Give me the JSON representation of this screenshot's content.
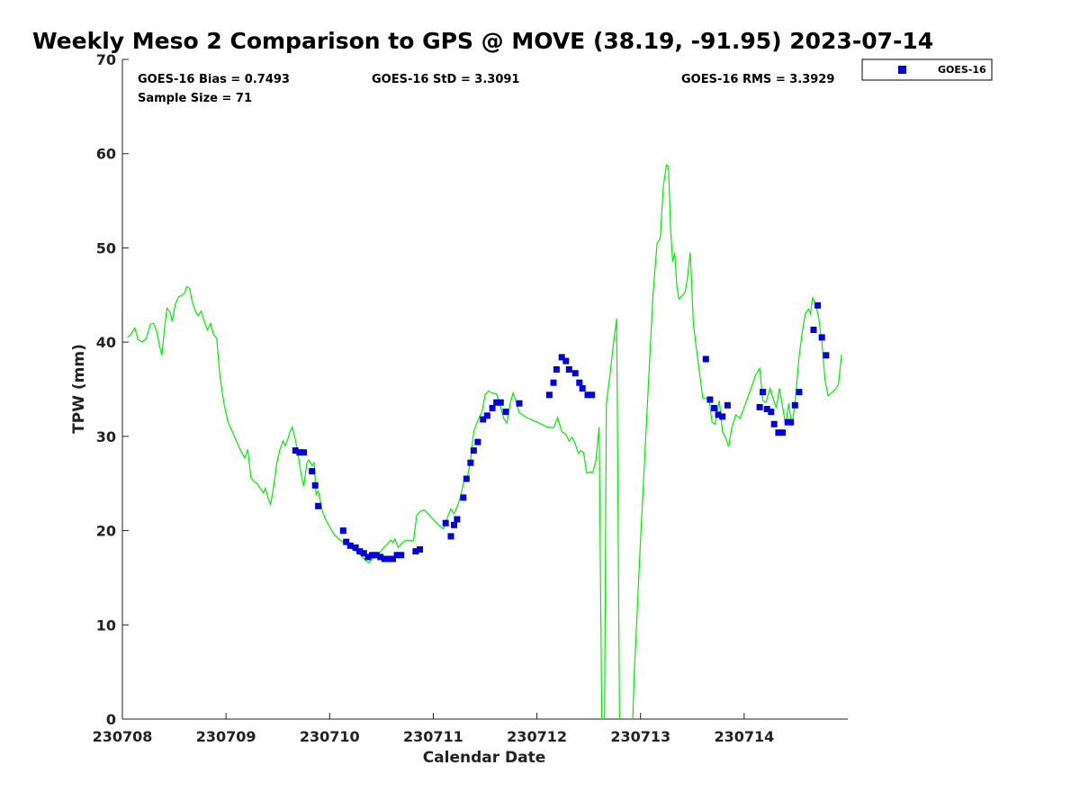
{
  "chart_data": {
    "type": "scatter",
    "title": "Weekly Meso 2 Comparison to GPS @ MOVE (38.19, -91.95) 2023-07-14",
    "xlabel": "Calendar Date",
    "ylabel": "TPW (mm)",
    "xlim": [
      "230708",
      "230715"
    ],
    "ylim": [
      0,
      70
    ],
    "x_ticks": [
      "230708",
      "230709",
      "230710",
      "230711",
      "230712",
      "230713",
      "230714"
    ],
    "y_ticks": [
      "0",
      "10",
      "20",
      "30",
      "40",
      "50",
      "60",
      "70"
    ],
    "grid": false,
    "legend_position": "top-right, outside plot",
    "stats": {
      "bias": "GOES-16 Bias = 0.7493",
      "std": "GOES-16 StD = 3.3091",
      "rms": "GOES-16 RMS = 3.3929",
      "sample_size": "Sample Size = 71"
    },
    "colors": {
      "goes": "#0000dd",
      "gps": "#00ee00"
    },
    "series": [
      {
        "name": "GOES-16",
        "marker": "square",
        "points": [
          [
            1.67,
            28.5
          ],
          [
            1.71,
            28.3
          ],
          [
            1.75,
            28.3
          ],
          [
            1.83,
            26.3
          ],
          [
            1.86,
            24.8
          ],
          [
            1.89,
            22.6
          ],
          [
            2.13,
            20.0
          ],
          [
            2.16,
            18.8
          ],
          [
            2.2,
            18.4
          ],
          [
            2.25,
            18.2
          ],
          [
            2.29,
            17.8
          ],
          [
            2.33,
            17.6
          ],
          [
            2.37,
            17.2
          ],
          [
            2.41,
            17.4
          ],
          [
            2.45,
            17.4
          ],
          [
            2.49,
            17.2
          ],
          [
            2.53,
            17.0
          ],
          [
            2.57,
            17.0
          ],
          [
            2.61,
            17.0
          ],
          [
            2.65,
            17.4
          ],
          [
            2.69,
            17.4
          ],
          [
            2.83,
            17.8
          ],
          [
            2.87,
            18.0
          ],
          [
            3.12,
            20.8
          ],
          [
            3.17,
            19.4
          ],
          [
            3.2,
            20.6
          ],
          [
            3.23,
            21.2
          ],
          [
            3.29,
            23.5
          ],
          [
            3.32,
            25.5
          ],
          [
            3.36,
            27.2
          ],
          [
            3.39,
            28.5
          ],
          [
            3.43,
            29.4
          ],
          [
            3.48,
            31.8
          ],
          [
            3.52,
            32.2
          ],
          [
            3.57,
            33.0
          ],
          [
            3.61,
            33.6
          ],
          [
            3.65,
            33.6
          ],
          [
            3.7,
            32.6
          ],
          [
            3.83,
            33.5
          ],
          [
            4.12,
            34.4
          ],
          [
            4.16,
            35.7
          ],
          [
            4.19,
            37.1
          ],
          [
            4.24,
            38.4
          ],
          [
            4.28,
            38.0
          ],
          [
            4.31,
            37.1
          ],
          [
            4.37,
            36.7
          ],
          [
            4.41,
            35.7
          ],
          [
            4.44,
            35.1
          ],
          [
            4.49,
            34.4
          ],
          [
            4.53,
            34.4
          ],
          [
            5.63,
            38.2
          ],
          [
            5.67,
            33.9
          ],
          [
            5.71,
            33.0
          ],
          [
            5.75,
            32.3
          ],
          [
            5.79,
            32.1
          ],
          [
            5.84,
            33.3
          ],
          [
            6.15,
            33.1
          ],
          [
            6.18,
            34.7
          ],
          [
            6.22,
            32.9
          ],
          [
            6.26,
            32.6
          ],
          [
            6.29,
            31.3
          ],
          [
            6.33,
            30.4
          ],
          [
            6.37,
            30.4
          ],
          [
            6.42,
            31.5
          ],
          [
            6.45,
            31.5
          ],
          [
            6.49,
            33.3
          ],
          [
            6.53,
            34.7
          ],
          [
            6.67,
            41.3
          ],
          [
            6.71,
            43.9
          ],
          [
            6.75,
            40.5
          ],
          [
            6.79,
            38.6
          ]
        ]
      },
      {
        "name": "GPS",
        "marker": "line",
        "points": [
          [
            0.05,
            40.5
          ],
          [
            0.08,
            40.8
          ],
          [
            0.12,
            41.5
          ],
          [
            0.15,
            40.3
          ],
          [
            0.19,
            40.0
          ],
          [
            0.23,
            40.4
          ],
          [
            0.27,
            41.9
          ],
          [
            0.3,
            42.0
          ],
          [
            0.33,
            41.2
          ],
          [
            0.36,
            39.5
          ],
          [
            0.38,
            38.6
          ],
          [
            0.41,
            41.8
          ],
          [
            0.43,
            43.6
          ],
          [
            0.46,
            43.2
          ],
          [
            0.48,
            42.2
          ],
          [
            0.51,
            44.0
          ],
          [
            0.54,
            44.8
          ],
          [
            0.58,
            45.0
          ],
          [
            0.6,
            45.2
          ],
          [
            0.62,
            45.9
          ],
          [
            0.65,
            45.7
          ],
          [
            0.67,
            44.5
          ],
          [
            0.7,
            43.4
          ],
          [
            0.73,
            42.8
          ],
          [
            0.76,
            43.3
          ],
          [
            0.79,
            42.2
          ],
          [
            0.82,
            41.3
          ],
          [
            0.85,
            42.0
          ],
          [
            0.88,
            40.8
          ],
          [
            0.91,
            40.4
          ],
          [
            0.94,
            36.5
          ],
          [
            0.98,
            33.5
          ],
          [
            1.02,
            31.5
          ],
          [
            1.06,
            30.5
          ],
          [
            1.1,
            29.5
          ],
          [
            1.14,
            28.5
          ],
          [
            1.18,
            27.7
          ],
          [
            1.21,
            28.6
          ],
          [
            1.24,
            25.6
          ],
          [
            1.27,
            25.2
          ],
          [
            1.3,
            25.0
          ],
          [
            1.33,
            24.5
          ],
          [
            1.36,
            24.0
          ],
          [
            1.38,
            24.5
          ],
          [
            1.41,
            23.3
          ],
          [
            1.43,
            22.8
          ],
          [
            1.46,
            24.7
          ],
          [
            1.49,
            27.2
          ],
          [
            1.52,
            28.6
          ],
          [
            1.55,
            29.5
          ],
          [
            1.57,
            29.0
          ],
          [
            1.59,
            29.5
          ],
          [
            1.62,
            30.6
          ],
          [
            1.64,
            31.0
          ],
          [
            1.67,
            29.6
          ],
          [
            1.7,
            27.8
          ],
          [
            1.72,
            26.3
          ],
          [
            1.75,
            24.7
          ],
          [
            1.78,
            27.2
          ],
          [
            1.8,
            27.5
          ],
          [
            1.83,
            26.9
          ],
          [
            1.85,
            27.2
          ],
          [
            1.87,
            23.8
          ],
          [
            1.89,
            24.2
          ],
          [
            1.91,
            23.2
          ],
          [
            1.93,
            22.0
          ],
          [
            1.97,
            21.0
          ],
          [
            2.01,
            20.2
          ],
          [
            2.05,
            19.5
          ],
          [
            2.1,
            19.0
          ],
          [
            2.15,
            18.6
          ],
          [
            2.2,
            18.2
          ],
          [
            2.25,
            17.8
          ],
          [
            2.3,
            17.4
          ],
          [
            2.35,
            16.8
          ],
          [
            2.38,
            16.6
          ],
          [
            2.41,
            17.0
          ],
          [
            2.44,
            17.2
          ],
          [
            2.47,
            17.5
          ],
          [
            2.5,
            17.9
          ],
          [
            2.53,
            18.3
          ],
          [
            2.56,
            18.6
          ],
          [
            2.59,
            19.0
          ],
          [
            2.61,
            18.7
          ],
          [
            2.63,
            19.1
          ],
          [
            2.66,
            18.2
          ],
          [
            2.7,
            18.7
          ],
          [
            2.74,
            19.0
          ],
          [
            2.78,
            18.9
          ],
          [
            2.81,
            19.0
          ],
          [
            2.84,
            21.6
          ],
          [
            2.87,
            22.0
          ],
          [
            2.91,
            22.2
          ],
          [
            2.95,
            21.8
          ],
          [
            3.0,
            21.2
          ],
          [
            3.05,
            20.6
          ],
          [
            3.1,
            20.2
          ],
          [
            3.14,
            21.5
          ],
          [
            3.17,
            22.3
          ],
          [
            3.2,
            21.8
          ],
          [
            3.23,
            22.5
          ],
          [
            3.26,
            23.5
          ],
          [
            3.3,
            25.5
          ],
          [
            3.33,
            25.7
          ],
          [
            3.36,
            27.5
          ],
          [
            3.39,
            30.5
          ],
          [
            3.43,
            31.7
          ],
          [
            3.47,
            32.6
          ],
          [
            3.5,
            34.4
          ],
          [
            3.53,
            34.8
          ],
          [
            3.57,
            34.6
          ],
          [
            3.61,
            34.5
          ],
          [
            3.64,
            33.5
          ],
          [
            3.68,
            31.9
          ],
          [
            3.71,
            31.4
          ],
          [
            3.74,
            33.4
          ],
          [
            3.77,
            34.6
          ],
          [
            3.8,
            33.7
          ],
          [
            3.83,
            32.5
          ],
          [
            3.9,
            32.0
          ],
          [
            4.0,
            31.5
          ],
          [
            4.1,
            31.0
          ],
          [
            4.16,
            30.9
          ],
          [
            4.2,
            32.0
          ],
          [
            4.24,
            30.5
          ],
          [
            4.28,
            30.2
          ],
          [
            4.31,
            29.5
          ],
          [
            4.34,
            29.9
          ],
          [
            4.37,
            29.2
          ],
          [
            4.4,
            28.2
          ],
          [
            4.42,
            28.5
          ],
          [
            4.45,
            28.3
          ],
          [
            4.48,
            26.1
          ],
          [
            4.51,
            26.2
          ],
          [
            4.54,
            26.2
          ],
          [
            4.57,
            27.5
          ],
          [
            4.6,
            31.0
          ],
          [
            4.63,
            -5.0
          ],
          [
            4.65,
            -5.0
          ],
          [
            4.67,
            33.4
          ],
          [
            4.71,
            37.0
          ],
          [
            4.74,
            40.0
          ],
          [
            4.77,
            42.5
          ],
          [
            4.8,
            -5.0
          ],
          [
            4.85,
            -5.0
          ],
          [
            4.91,
            -5.0
          ],
          [
            4.94,
            5.0
          ],
          [
            5.0,
            19.0
          ],
          [
            5.06,
            32.0
          ],
          [
            5.12,
            45.0
          ],
          [
            5.16,
            50.5
          ],
          [
            5.19,
            51.0
          ],
          [
            5.22,
            56.5
          ],
          [
            5.25,
            58.8
          ],
          [
            5.27,
            58.6
          ],
          [
            5.29,
            52.0
          ],
          [
            5.31,
            48.5
          ],
          [
            5.33,
            49.5
          ],
          [
            5.35,
            46.0
          ],
          [
            5.37,
            44.6
          ],
          [
            5.4,
            44.9
          ],
          [
            5.43,
            45.3
          ],
          [
            5.45,
            46.6
          ],
          [
            5.48,
            49.5
          ],
          [
            5.51,
            42.0
          ],
          [
            5.54,
            39.2
          ],
          [
            5.57,
            36.7
          ],
          [
            5.6,
            34.1
          ],
          [
            5.63,
            34.0
          ],
          [
            5.66,
            34.0
          ],
          [
            5.69,
            31.5
          ],
          [
            5.72,
            31.3
          ],
          [
            5.76,
            33.8
          ],
          [
            5.79,
            30.5
          ],
          [
            5.82,
            29.9
          ],
          [
            5.85,
            28.9
          ],
          [
            5.88,
            30.9
          ],
          [
            5.92,
            32.3
          ],
          [
            5.96,
            31.9
          ],
          [
            6.01,
            33.4
          ],
          [
            6.06,
            34.9
          ],
          [
            6.11,
            36.5
          ],
          [
            6.15,
            37.2
          ],
          [
            6.18,
            33.8
          ],
          [
            6.21,
            33.6
          ],
          [
            6.25,
            35.1
          ],
          [
            6.28,
            34.0
          ],
          [
            6.31,
            33.0
          ],
          [
            6.34,
            35.1
          ],
          [
            6.37,
            33.2
          ],
          [
            6.4,
            31.2
          ],
          [
            6.43,
            33.5
          ],
          [
            6.46,
            31.1
          ],
          [
            6.49,
            33.5
          ],
          [
            6.53,
            38.5
          ],
          [
            6.56,
            41.0
          ],
          [
            6.59,
            43.0
          ],
          [
            6.62,
            43.5
          ],
          [
            6.64,
            43.0
          ],
          [
            6.66,
            44.7
          ],
          [
            6.69,
            44.0
          ],
          [
            6.72,
            42.5
          ],
          [
            6.75,
            40.0
          ],
          [
            6.78,
            36.0
          ],
          [
            6.81,
            34.3
          ],
          [
            6.84,
            34.6
          ],
          [
            6.88,
            35.0
          ],
          [
            6.91,
            35.5
          ],
          [
            6.94,
            38.7
          ]
        ]
      }
    ]
  },
  "legend": {
    "label": "GOES-16"
  }
}
